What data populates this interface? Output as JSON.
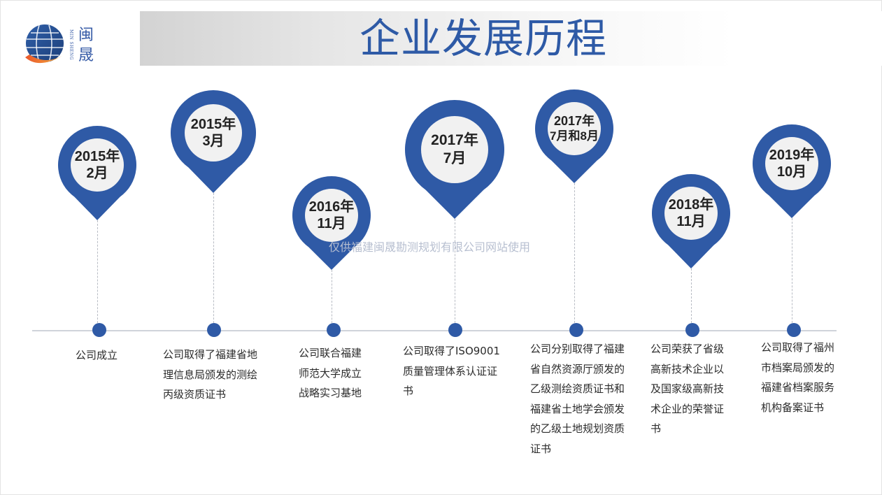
{
  "header": {
    "title": "企业发展历程",
    "logo": {
      "cn": "闽晟",
      "en": "MIN SHENG"
    }
  },
  "colors": {
    "accent": "#2f5aa6",
    "pin_inner": "#f1f1f1",
    "line": "#cfd3da"
  },
  "watermark": "仅供福建闽晟勘测规划有限公司网站使用",
  "milestones": [
    {
      "date_line1": "2015年",
      "date_line2": "2月",
      "description": "公司成立"
    },
    {
      "date_line1": "2015年",
      "date_line2": "3月",
      "description": "公司取得了福建省地\n理信息局颁发的测绘\n丙级资质证书"
    },
    {
      "date_line1": "2016年",
      "date_line2": "11月",
      "description": "公司联合福建\n师范大学成立\n战略实习基地"
    },
    {
      "date_line1": "2017年",
      "date_line2": "7月",
      "description": "公司取得了ISO9001\n质量管理体系认证证\n书"
    },
    {
      "date_line1": "2017年",
      "date_line2": "7月和8月",
      "description": "公司分别取得了福建\n省自然资源厅颁发的\n乙级测绘资质证书和\n福建省土地学会颁发\n的乙级土地规划资质\n证书"
    },
    {
      "date_line1": "2018年",
      "date_line2": "11月",
      "description": "公司荣获了省级\n高新技术企业以\n及国家级高新技\n术企业的荣誉证\n书"
    },
    {
      "date_line1": "2019年",
      "date_line2": "10月",
      "description": "公司取得了福州\n市档案局颁发的\n福建省档案服务\n机构备案证书"
    }
  ]
}
